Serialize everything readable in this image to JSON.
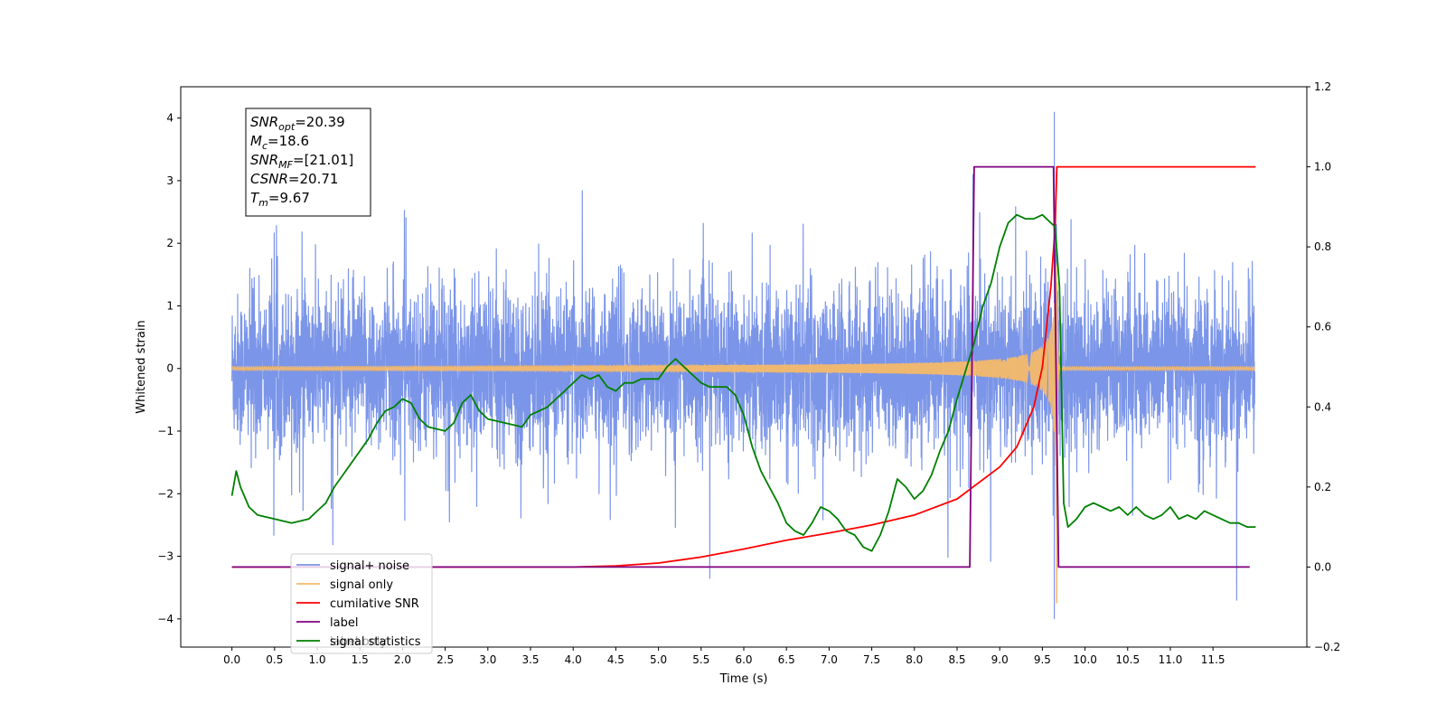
{
  "chart_data": {
    "type": "line",
    "title": "",
    "xlabel": "Time (s)",
    "ylabel": "Whitened strain",
    "y2label": "",
    "xlim": [
      -0.6,
      12.6
    ],
    "ylim": [
      -4.45,
      4.5
    ],
    "y2lim": [
      -0.2,
      1.2
    ],
    "xticks": [
      0.0,
      0.5,
      1.0,
      1.5,
      2.0,
      2.5,
      3.0,
      3.5,
      4.0,
      4.5,
      5.0,
      5.5,
      6.0,
      6.5,
      7.0,
      7.5,
      8.0,
      8.5,
      9.0,
      9.5,
      10.0,
      10.5,
      11.0,
      11.5
    ],
    "xtick_labels": [
      "0.0",
      "0.5",
      "1.0",
      "1.5",
      "2.0",
      "2.5",
      "3.0",
      "3.5",
      "4.0",
      "4.5",
      "5.0",
      "5.5",
      "6.0",
      "6.5",
      "7.0",
      "7.5",
      "8.0",
      "8.5",
      "9.0",
      "9.5",
      "10.0",
      "10.5",
      "11.0",
      "11.5"
    ],
    "yticks": [
      -4,
      -3,
      -2,
      -1,
      0,
      1,
      2,
      3,
      4
    ],
    "ytick_labels": [
      "−4",
      "−3",
      "−2",
      "−1",
      "0",
      "1",
      "2",
      "3",
      "4"
    ],
    "y2ticks": [
      -0.2,
      0.0,
      0.2,
      0.4,
      0.6,
      0.8,
      1.0,
      1.2
    ],
    "y2tick_labels": [
      "−0.2",
      "0.0",
      "0.2",
      "0.4",
      "0.6",
      "0.8",
      "1.0",
      "1.2"
    ],
    "grid": false,
    "legend_position": "lower-left",
    "annotation": {
      "lines": [
        {
          "main": "SNR",
          "sub": "opt",
          "value": "=20.39"
        },
        {
          "main": "M",
          "sub": "c",
          "value": "=18.6"
        },
        {
          "main": "SNR",
          "sub": "MF",
          "value": "=[21.01]"
        },
        {
          "main": "CSNR",
          "sub": "",
          "value": "=20.71"
        },
        {
          "main": "T",
          "sub": "m",
          "value": "=9.67"
        }
      ]
    },
    "series": [
      {
        "name": "signal+ noise",
        "color": "#7b95e8",
        "axis": "left",
        "x_range": [
          0.0,
          11.99
        ],
        "noise_std": 0.85,
        "peak_x": 9.64,
        "peak_max": 4.1,
        "peak_min": -4.0
      },
      {
        "name": "signal only",
        "color": "#f5b96a",
        "axis": "left",
        "x_range": [
          0.0,
          11.99
        ],
        "merger_time": 9.67,
        "peak_amplitude": 3.75,
        "post_merger_amplitude": 0.03
      },
      {
        "name": "cumilative SNR",
        "color": "#ff0000",
        "axis": "right",
        "x": [
          0.0,
          4.0,
          4.5,
          5.0,
          5.5,
          6.0,
          6.5,
          7.0,
          7.5,
          8.0,
          8.5,
          9.0,
          9.2,
          9.4,
          9.5,
          9.6,
          9.65,
          9.67,
          9.7,
          12.0
        ],
        "y": [
          0.0,
          0.0,
          0.003,
          0.01,
          0.025,
          0.045,
          0.067,
          0.085,
          0.105,
          0.13,
          0.17,
          0.25,
          0.3,
          0.4,
          0.5,
          0.7,
          0.85,
          1.0,
          1.0,
          1.0
        ]
      },
      {
        "name": "label",
        "color": "#800080",
        "axis": "right",
        "x": [
          0.0,
          8.65,
          8.7,
          9.63,
          9.69,
          11.93
        ],
        "y": [
          0.0,
          0.0,
          1.0,
          1.0,
          0.0,
          0.0
        ]
      },
      {
        "name": "",
        "color": "#8a8a8a",
        "axis": "right",
        "legend_text": "label only",
        "x": [],
        "y": []
      },
      {
        "name": "signal statistics",
        "color": "#008000",
        "axis": "right",
        "x": [
          0.0,
          0.05,
          0.1,
          0.2,
          0.3,
          0.5,
          0.7,
          0.9,
          1.0,
          1.1,
          1.2,
          1.4,
          1.6,
          1.7,
          1.8,
          1.9,
          2.0,
          2.1,
          2.2,
          2.3,
          2.5,
          2.6,
          2.7,
          2.8,
          2.9,
          3.0,
          3.2,
          3.4,
          3.5,
          3.7,
          3.8,
          3.9,
          4.0,
          4.1,
          4.2,
          4.3,
          4.4,
          4.5,
          4.6,
          4.7,
          4.8,
          5.0,
          5.1,
          5.2,
          5.3,
          5.4,
          5.5,
          5.6,
          5.7,
          5.8,
          5.9,
          6.0,
          6.1,
          6.2,
          6.3,
          6.4,
          6.5,
          6.6,
          6.7,
          6.8,
          6.9,
          7.0,
          7.1,
          7.2,
          7.3,
          7.4,
          7.5,
          7.6,
          7.7,
          7.8,
          7.9,
          8.0,
          8.1,
          8.2,
          8.3,
          8.4,
          8.5,
          8.6,
          8.7,
          8.8,
          8.9,
          9.0,
          9.1,
          9.2,
          9.3,
          9.4,
          9.5,
          9.6,
          9.65,
          9.7,
          9.75,
          9.8,
          9.9,
          10.0,
          10.1,
          10.2,
          10.3,
          10.4,
          10.5,
          10.6,
          10.7,
          10.8,
          10.9,
          11.0,
          11.1,
          11.2,
          11.3,
          11.4,
          11.5,
          11.6,
          11.7,
          11.8,
          11.9,
          12.0
        ],
        "y": [
          0.178,
          0.24,
          0.2,
          0.15,
          0.13,
          0.12,
          0.11,
          0.12,
          0.14,
          0.16,
          0.2,
          0.26,
          0.32,
          0.36,
          0.39,
          0.4,
          0.42,
          0.41,
          0.37,
          0.35,
          0.34,
          0.36,
          0.41,
          0.43,
          0.39,
          0.37,
          0.36,
          0.35,
          0.38,
          0.4,
          0.42,
          0.44,
          0.46,
          0.48,
          0.47,
          0.48,
          0.45,
          0.44,
          0.46,
          0.46,
          0.47,
          0.47,
          0.5,
          0.52,
          0.5,
          0.48,
          0.46,
          0.45,
          0.45,
          0.45,
          0.43,
          0.38,
          0.3,
          0.24,
          0.2,
          0.16,
          0.11,
          0.09,
          0.08,
          0.11,
          0.15,
          0.14,
          0.12,
          0.09,
          0.08,
          0.05,
          0.04,
          0.08,
          0.14,
          0.22,
          0.2,
          0.17,
          0.19,
          0.23,
          0.29,
          0.34,
          0.42,
          0.49,
          0.56,
          0.65,
          0.71,
          0.8,
          0.86,
          0.88,
          0.87,
          0.87,
          0.88,
          0.86,
          0.85,
          0.7,
          0.16,
          0.1,
          0.12,
          0.15,
          0.16,
          0.15,
          0.14,
          0.15,
          0.13,
          0.15,
          0.13,
          0.12,
          0.13,
          0.15,
          0.12,
          0.13,
          0.12,
          0.14,
          0.13,
          0.12,
          0.11,
          0.11,
          0.1,
          0.1
        ]
      }
    ]
  }
}
